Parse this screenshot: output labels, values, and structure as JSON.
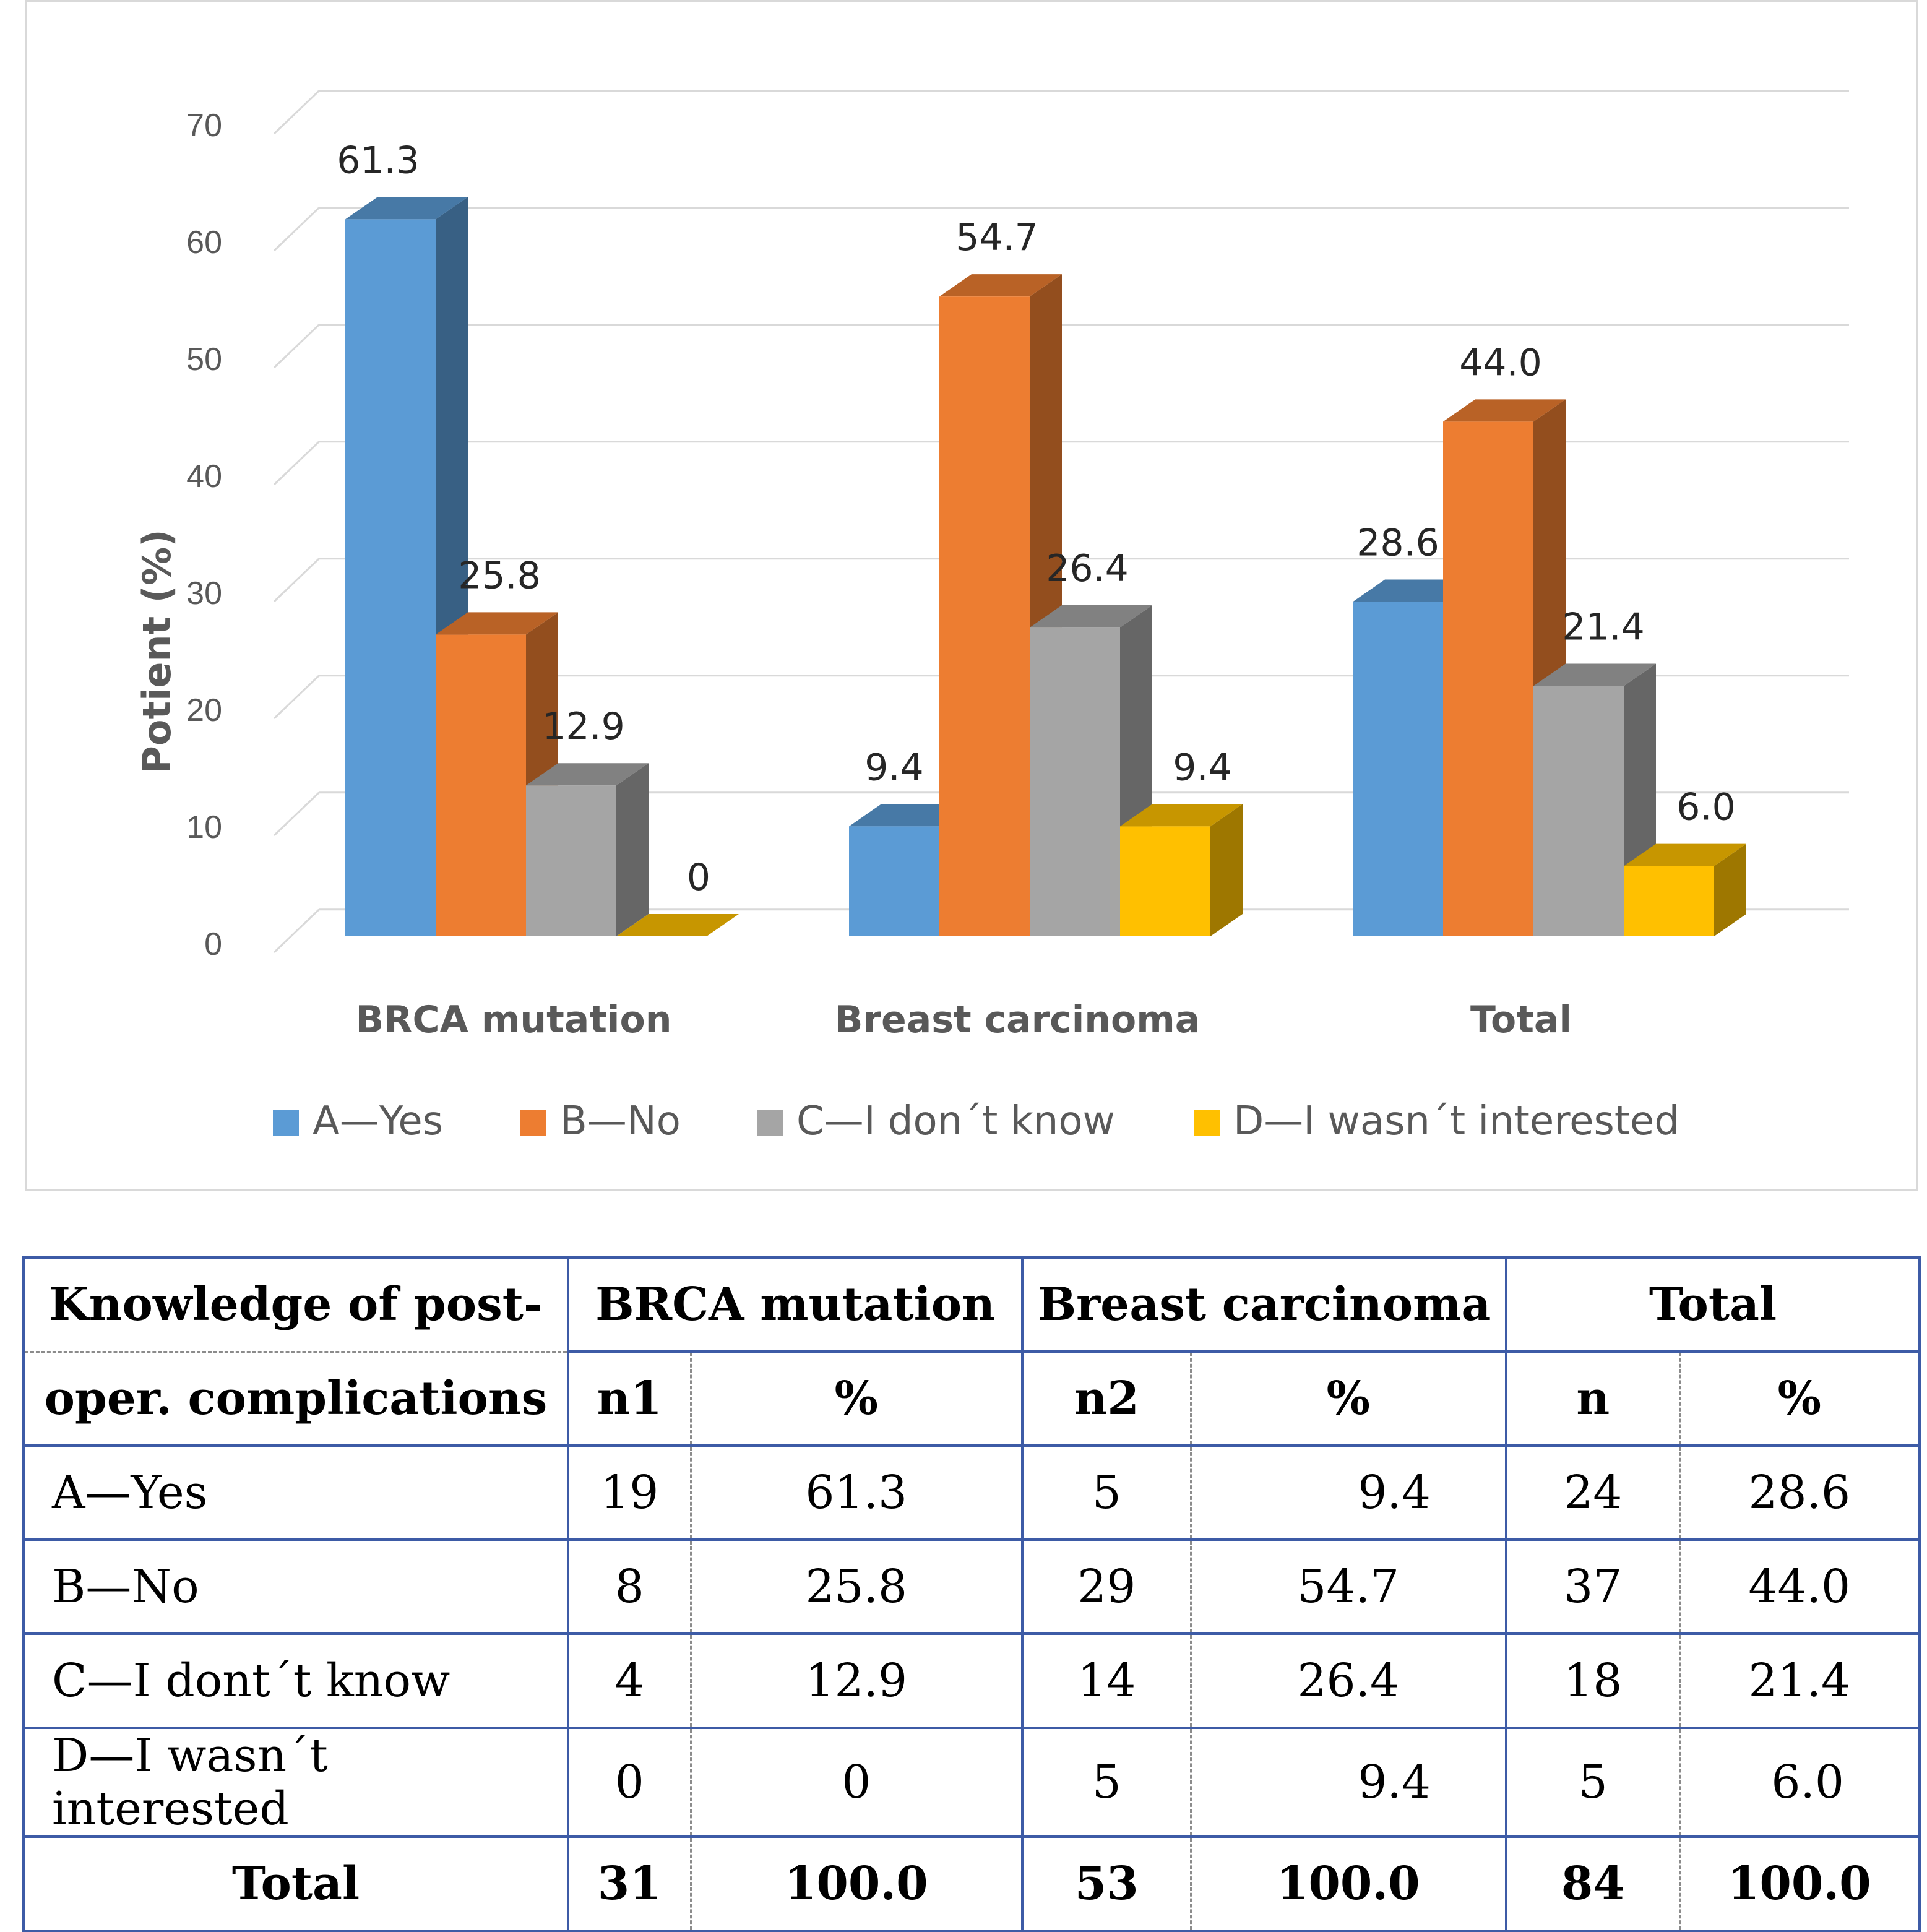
{
  "chart_data": {
    "type": "bar",
    "title": "",
    "ylabel": "Potient (%)",
    "xlabel": "",
    "ylim": [
      0,
      70
    ],
    "yticks": [
      "0",
      "10",
      "20",
      "30",
      "40",
      "50",
      "60",
      "70"
    ],
    "categories": [
      "BRCA mutation",
      "Breast carcinoma",
      "Total"
    ],
    "series": [
      {
        "name": "A—Yes",
        "color": "#5b9bd5",
        "values": [
          61.3,
          9.4,
          28.6
        ],
        "labels": [
          "61.3",
          "9.4",
          "28.6"
        ]
      },
      {
        "name": "B—No",
        "color": "#ed7d31",
        "values": [
          25.8,
          54.7,
          44.0
        ],
        "labels": [
          "25.8",
          "54.7",
          "44.0"
        ]
      },
      {
        "name": "C—I don´t know",
        "color": "#a5a5a5",
        "values": [
          12.9,
          26.4,
          21.4
        ],
        "labels": [
          "12.9",
          "26.4",
          "21.4"
        ]
      },
      {
        "name": "D—I wasn´t interested",
        "color": "#ffc000",
        "values": [
          0,
          9.4,
          6.0
        ],
        "labels": [
          "0",
          "9.4",
          "6.0"
        ]
      }
    ],
    "legend_position": "bottom",
    "grid": true
  },
  "table": {
    "header_top": [
      "Knowledge of post-",
      "BRCA mutation",
      "Breast carcinoma",
      "Total"
    ],
    "header_sub": [
      "oper. complications",
      "n1",
      "%",
      "n2",
      "%",
      "n",
      "%"
    ],
    "rows": [
      [
        "A—Yes",
        "19",
        "61.3",
        "5",
        "9.4",
        "24",
        "28.6"
      ],
      [
        "B—No",
        "8",
        "25.8",
        "29",
        "54.7",
        "37",
        "44.0"
      ],
      [
        "C—I dont´t know",
        "4",
        "12.9",
        "14",
        "26.4",
        "18",
        "21.4"
      ],
      [
        "D—I wasn´t interested",
        "0",
        "0",
        "5",
        "9.4",
        "5",
        "6.0"
      ]
    ],
    "total_row": [
      "Total",
      "31",
      "100.0",
      "53",
      "100.0",
      "84",
      "100.0"
    ]
  }
}
